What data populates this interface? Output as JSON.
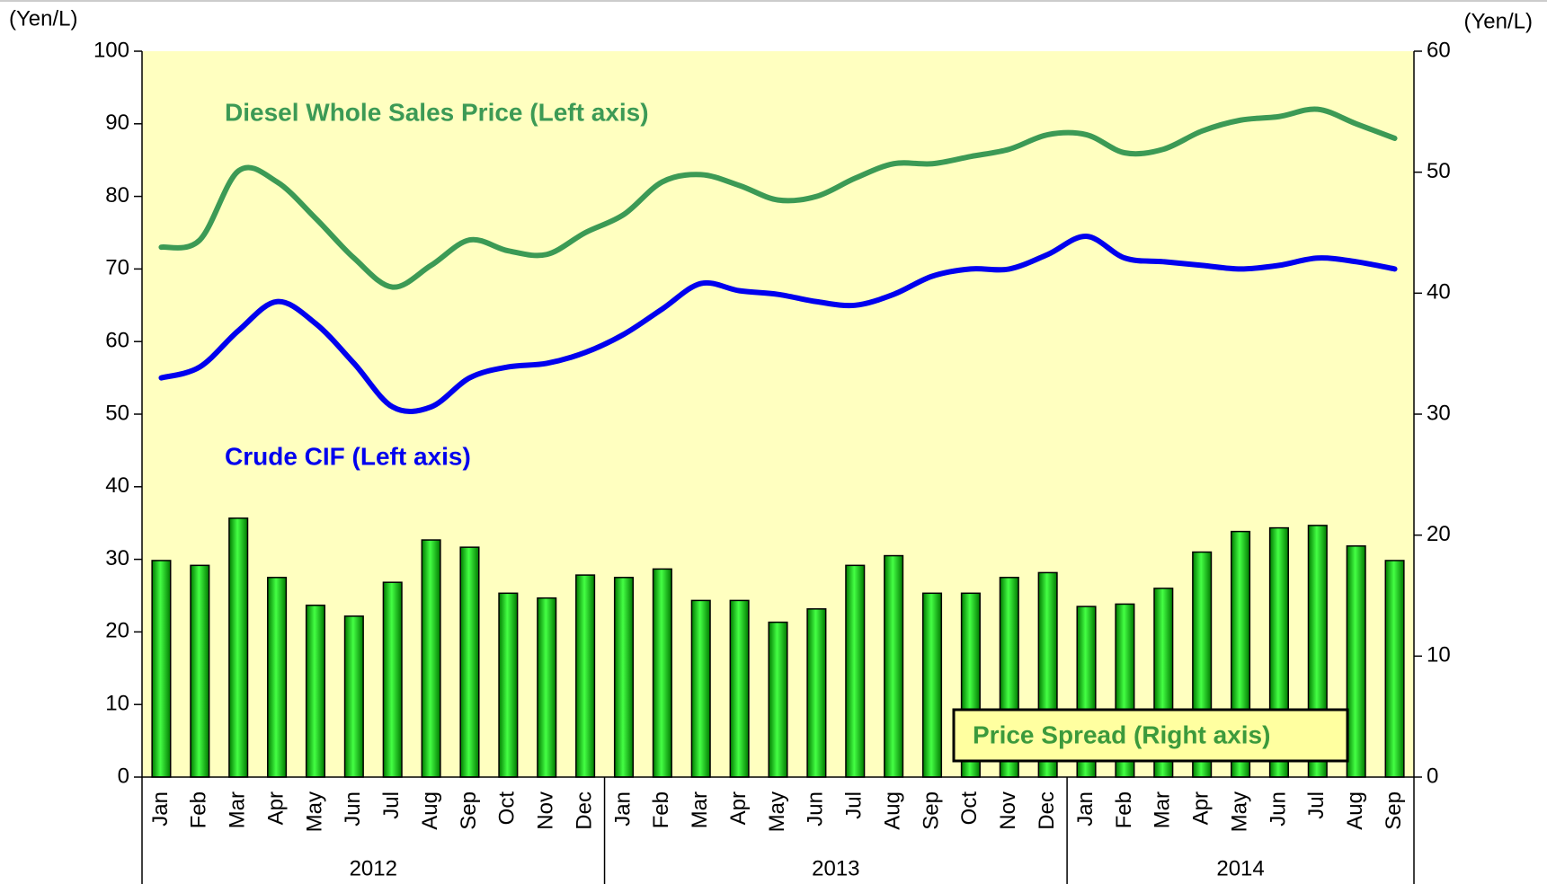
{
  "chart_data": {
    "type": "bar_line",
    "ylabel": "(Yen/L)",
    "y2label": "(Yen/L)",
    "categories": [
      "Jan",
      "Feb",
      "Mar",
      "Apr",
      "May",
      "Jun",
      "Jul",
      "Aug",
      "Sep",
      "Oct",
      "Nov",
      "Dec",
      "Jan",
      "Feb",
      "Mar",
      "Apr",
      "May",
      "Jun",
      "Jul",
      "Aug",
      "Sep",
      "Oct",
      "Nov",
      "Dec",
      "Jan",
      "Feb",
      "Mar",
      "Apr",
      "May",
      "Jun",
      "Jul",
      "Aug",
      "Sep"
    ],
    "years": [
      "2012",
      "2013",
      "2014"
    ],
    "ylim": [
      0,
      100
    ],
    "yticks": [
      0,
      10,
      20,
      30,
      40,
      50,
      60,
      70,
      80,
      90,
      100
    ],
    "y2lim": [
      0,
      60
    ],
    "y2ticks": [
      0,
      10,
      20,
      30,
      40,
      50,
      60
    ],
    "background": "#ffffc0",
    "series": [
      {
        "name": "Diesel Whole Sales Price (Left axis)",
        "type": "line",
        "color": "#3c9a55",
        "values": [
          73,
          74,
          83.5,
          82,
          77,
          71.5,
          67.5,
          70.5,
          74,
          72.5,
          72,
          75,
          77.5,
          82,
          83,
          81.5,
          79.5,
          80,
          82.5,
          84.5,
          84.5,
          85.5,
          86.5,
          88.5,
          88.5,
          86,
          86.5,
          89,
          90.5,
          91,
          92,
          90,
          88
        ]
      },
      {
        "name": "Crude CIF (Left axis)",
        "type": "line",
        "color": "#0000ee",
        "values": [
          55,
          56.5,
          61.5,
          65.5,
          62.5,
          57,
          51,
          51,
          55,
          56.5,
          57,
          58.5,
          61,
          64.5,
          68,
          67,
          66.5,
          65.5,
          65,
          66.5,
          69,
          70,
          70,
          72,
          74.5,
          71.5,
          71,
          70.5,
          70,
          70.5,
          71.5,
          71,
          70
        ]
      },
      {
        "name": "Price Spread (Right axis)",
        "type": "bar",
        "axis": "y2",
        "color": "#00cc00",
        "values": [
          17.9,
          17.5,
          21.4,
          16.5,
          14.2,
          13.3,
          16.1,
          19.6,
          19.0,
          15.2,
          14.8,
          16.7,
          16.5,
          17.2,
          14.6,
          14.6,
          12.8,
          13.9,
          17.5,
          18.3,
          15.2,
          15.2,
          16.5,
          16.9,
          14.1,
          14.3,
          15.6,
          18.6,
          20.3,
          20.6,
          20.8,
          19.1,
          17.9
        ]
      }
    ]
  }
}
